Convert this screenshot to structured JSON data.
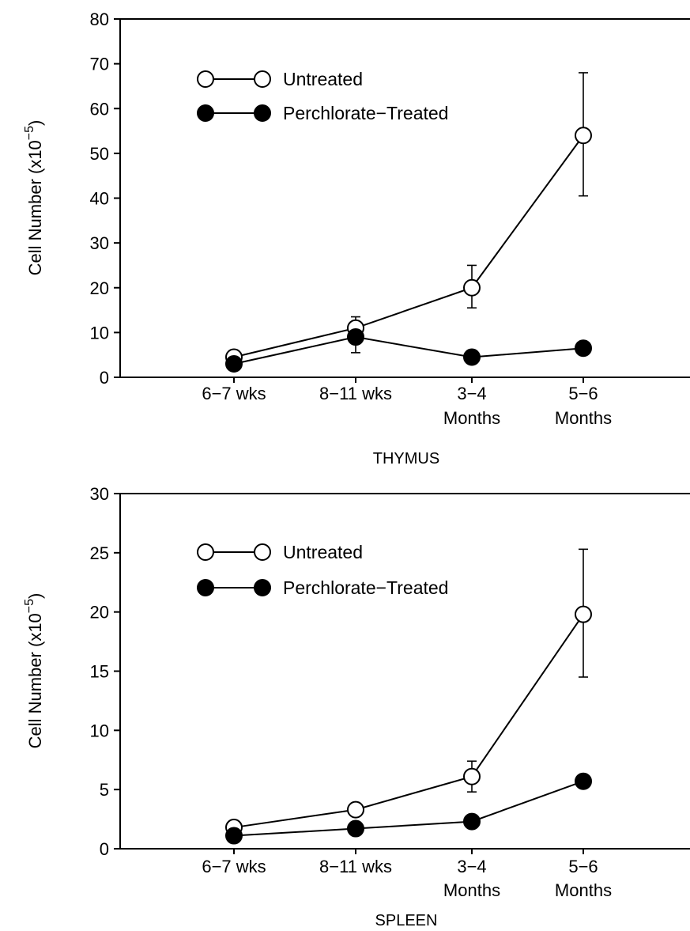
{
  "chart_data": [
    {
      "type": "line",
      "title": "THYMUS",
      "xlabel": "",
      "ylabel": "Cell Number (x10",
      "ylabel_exp": "−5",
      "ylabel_close": ")",
      "categories": [
        [
          "6−7 wks"
        ],
        [
          "8−11 wks"
        ],
        [
          "3−4",
          "Months"
        ],
        [
          "5−6",
          "Months"
        ]
      ],
      "ylim": [
        0,
        80
      ],
      "yticks": [
        0,
        10,
        20,
        30,
        40,
        50,
        60,
        70,
        80
      ],
      "legend_position": "top-left",
      "series": [
        {
          "name": "Untreated",
          "marker": "open-circle",
          "values": [
            4.5,
            11,
            20,
            54
          ],
          "error_upper": [
            null,
            13.5,
            25,
            68
          ],
          "error_lower": [
            null,
            null,
            15.5,
            40.5
          ]
        },
        {
          "name": "Perchlorate−Treated",
          "marker": "filled-circle",
          "values": [
            3,
            9,
            4.5,
            6.5
          ],
          "error_upper": [
            null,
            null,
            null,
            null
          ],
          "error_lower": [
            null,
            5.5,
            null,
            null
          ]
        }
      ]
    },
    {
      "type": "line",
      "title": "SPLEEN",
      "xlabel": "",
      "ylabel": "Cell Number (x10",
      "ylabel_exp": "−5",
      "ylabel_close": ")",
      "categories": [
        [
          "6−7 wks"
        ],
        [
          "8−11 wks"
        ],
        [
          "3−4",
          "Months"
        ],
        [
          "5−6",
          "Months"
        ]
      ],
      "ylim": [
        0,
        30
      ],
      "yticks": [
        0,
        5,
        10,
        15,
        20,
        25,
        30
      ],
      "legend_position": "top-left",
      "series": [
        {
          "name": "Untreated",
          "marker": "open-circle",
          "values": [
            1.8,
            3.3,
            6.1,
            19.8
          ],
          "error_upper": [
            null,
            null,
            7.4,
            25.3
          ],
          "error_lower": [
            null,
            null,
            4.8,
            14.5
          ]
        },
        {
          "name": "Perchlorate−Treated",
          "marker": "filled-circle",
          "values": [
            1.1,
            1.7,
            2.3,
            5.7
          ],
          "error_upper": [
            null,
            null,
            null,
            null
          ],
          "error_lower": [
            null,
            null,
            null,
            null
          ]
        }
      ]
    }
  ]
}
